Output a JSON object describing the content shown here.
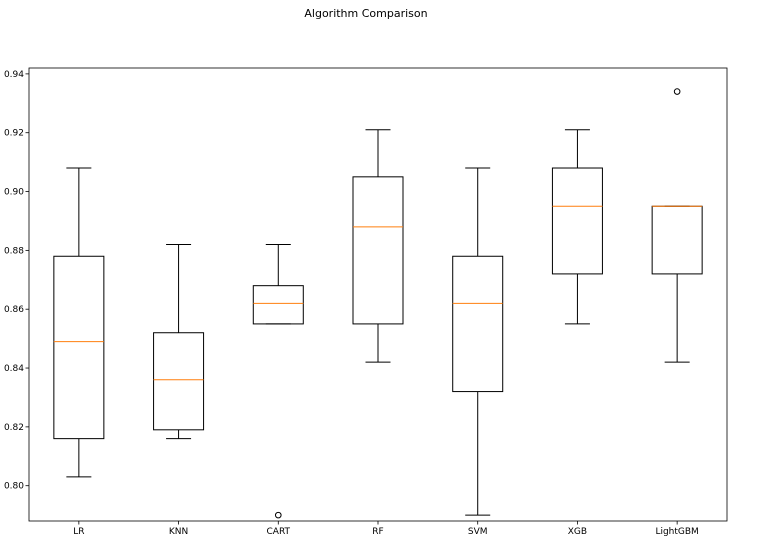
{
  "chart_data": {
    "type": "boxplot",
    "title": "Algorithm Comparison",
    "xlabel": "",
    "ylabel": "",
    "categories": [
      "LR",
      "KNN",
      "CART",
      "RF",
      "SVM",
      "XGB",
      "LightGBM"
    ],
    "ylim": [
      0.788,
      0.942
    ],
    "yticks": [
      "0.80",
      "0.82",
      "0.84",
      "0.86",
      "0.88",
      "0.90",
      "0.92",
      "0.94"
    ],
    "grid": false,
    "boxes": [
      {
        "name": "LR",
        "whisker_low": 0.803,
        "q1": 0.816,
        "median": 0.849,
        "q3": 0.878,
        "whisker_high": 0.908,
        "outliers": []
      },
      {
        "name": "KNN",
        "whisker_low": 0.816,
        "q1": 0.819,
        "median": 0.836,
        "q3": 0.852,
        "whisker_high": 0.882,
        "outliers": []
      },
      {
        "name": "CART",
        "whisker_low": 0.855,
        "q1": 0.855,
        "median": 0.862,
        "q3": 0.868,
        "whisker_high": 0.882,
        "outliers": [
          0.79
        ]
      },
      {
        "name": "RF",
        "whisker_low": 0.842,
        "q1": 0.855,
        "median": 0.888,
        "q3": 0.905,
        "whisker_high": 0.921,
        "outliers": []
      },
      {
        "name": "SVM",
        "whisker_low": 0.79,
        "q1": 0.832,
        "median": 0.862,
        "q3": 0.878,
        "whisker_high": 0.908,
        "outliers": []
      },
      {
        "name": "XGB",
        "whisker_low": 0.855,
        "q1": 0.872,
        "median": 0.895,
        "q3": 0.908,
        "whisker_high": 0.921,
        "outliers": []
      },
      {
        "name": "LightGBM",
        "whisker_low": 0.842,
        "q1": 0.872,
        "median": 0.895,
        "q3": 0.895,
        "whisker_high": 0.895,
        "outliers": [
          0.934
        ]
      }
    ],
    "colors": {
      "box": "#000000",
      "median": "#ff7f0e",
      "outlier": "#000000"
    }
  }
}
